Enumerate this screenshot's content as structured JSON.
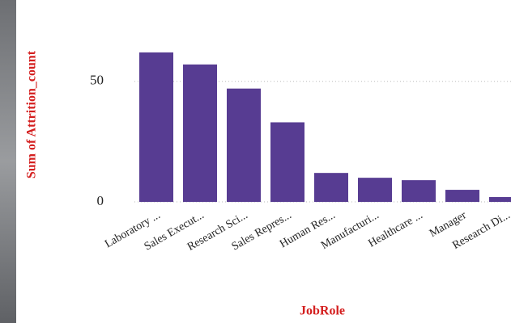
{
  "chart_data": {
    "type": "bar",
    "x_label": "JobRole",
    "y_label": "Sum of Attrition_count",
    "categories": [
      "Laboratory ...",
      "Sales Execut...",
      "Research Sci...",
      "Sales Repres...",
      "Human Res...",
      "Manufacturi...",
      "Healthcare ...",
      "Manager",
      "Research Di..."
    ],
    "values": [
      62,
      57,
      47,
      33,
      12,
      10,
      9,
      5,
      2
    ],
    "color": "#573c92",
    "ylim": [
      0,
      70
    ],
    "yticks": [
      0,
      50
    ],
    "grid": true
  }
}
